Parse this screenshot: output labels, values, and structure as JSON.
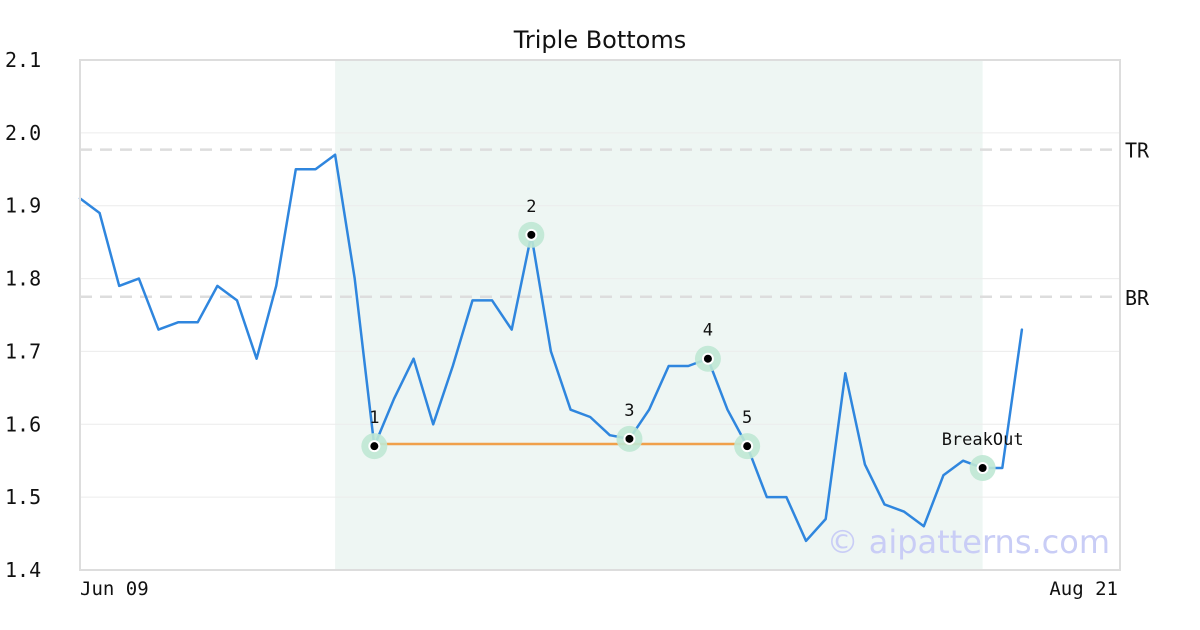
{
  "chart_data": {
    "type": "line",
    "title": "Triple Bottoms",
    "ylim": [
      1.4,
      2.1
    ],
    "y_ticks": [
      "1.4",
      "1.5",
      "1.6",
      "1.7",
      "1.8",
      "1.9",
      "2.0",
      "2.1"
    ],
    "x_tick_labels": [
      "Jun 09",
      "Aug 21"
    ],
    "grid": "horizontal",
    "series": [
      {
        "color": "#2f86de",
        "values": [
          1.91,
          1.89,
          1.79,
          1.8,
          1.73,
          1.74,
          1.74,
          1.79,
          1.77,
          1.69,
          1.79,
          1.95,
          1.95,
          1.97,
          1.8,
          1.57,
          1.635,
          1.69,
          1.6,
          1.68,
          1.77,
          1.77,
          1.73,
          1.86,
          1.7,
          1.62,
          1.61,
          1.585,
          1.58,
          1.62,
          1.68,
          1.68,
          1.69,
          1.62,
          1.57,
          1.5,
          1.5,
          1.44,
          1.47,
          1.67,
          1.545,
          1.49,
          1.48,
          1.46,
          1.53,
          1.55,
          1.54,
          1.54,
          1.73
        ]
      }
    ],
    "pattern_region": {
      "start_index": 13,
      "end_index": 46,
      "color": "#eef6f3"
    },
    "reference_lines": [
      {
        "label": "TR",
        "value": 1.977
      },
      {
        "label": "BR",
        "value": 1.775
      }
    ],
    "neckline": {
      "from_index": 15,
      "to_index": 34,
      "value": 1.573,
      "color": "#f0a04a"
    },
    "annotations": [
      {
        "label": "1",
        "index": 15,
        "value": 1.57
      },
      {
        "label": "2",
        "index": 23,
        "value": 1.86
      },
      {
        "label": "3",
        "index": 28,
        "value": 1.58
      },
      {
        "label": "4",
        "index": 32,
        "value": 1.69
      },
      {
        "label": "5",
        "index": 34,
        "value": 1.57
      },
      {
        "label": "BreakOut",
        "index": 46,
        "value": 1.54
      }
    ],
    "marker_halo_color": "#bfe8d4",
    "watermark": "© aipatterns.com"
  }
}
